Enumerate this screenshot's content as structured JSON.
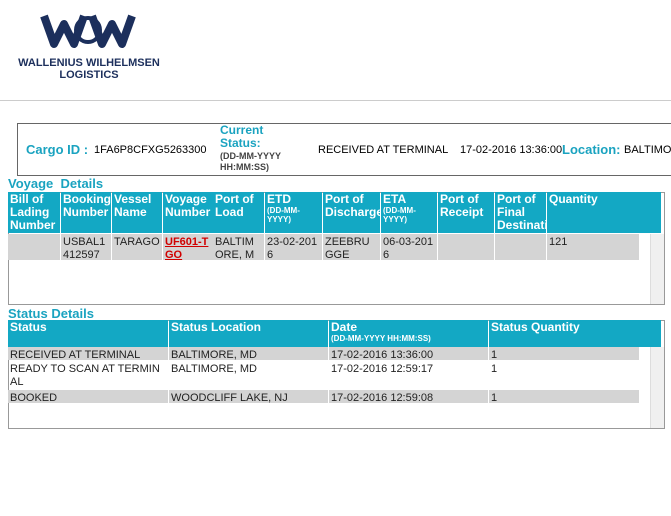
{
  "header": {
    "company": "WALLENIUS WILHELMSEN",
    "division": "LOGISTICS"
  },
  "cargo": {
    "id_label": "Cargo ID :",
    "id": "1FA6P8CFXG5263300",
    "status_label": "Current Status:",
    "status_format": "(DD-MM-YYYY HH:MM:SS)",
    "status": "RECEIVED AT TERMINAL",
    "date": "17-02-2016 13:36:00",
    "location_label": "Location:",
    "location": "BALTIMO"
  },
  "voyage": {
    "title": "Voyage  Details",
    "columns": [
      {
        "label": "Bill of Lading Number"
      },
      {
        "label": "Booking Number"
      },
      {
        "label": "Vessel Name"
      },
      {
        "label": "Voyage Number"
      },
      {
        "label": "Port of Load"
      },
      {
        "label": "ETD",
        "format": "(DD-MM-YYYY)"
      },
      {
        "label": "Port of Discharge"
      },
      {
        "label": "ETA",
        "format": "(DD-MM-YYYY)"
      },
      {
        "label": "Port of Receipt"
      },
      {
        "label": "Port of Final Destination"
      },
      {
        "label": "Quantity"
      }
    ],
    "rows": [
      [
        null,
        "USBAL1412597",
        "TARAGO",
        "UF601-TGO",
        "BALTIMORE, MD",
        "23-02-2016",
        "ZEEBRUGGE",
        "06-03-2016",
        null,
        null,
        "121"
      ]
    ]
  },
  "status": {
    "title": "Status Details",
    "columns": [
      {
        "label": "Status"
      },
      {
        "label": "Status Location"
      },
      {
        "label": "Date",
        "format": "(DD-MM-YYYY HH:MM:SS)"
      },
      {
        "label": "Status Quantity"
      }
    ],
    "rows": [
      [
        "RECEIVED AT TERMINAL",
        "BALTIMORE, MD",
        "17-02-2016 13:36:00",
        "1"
      ],
      [
        "READY TO SCAN AT TERMINAL",
        "BALTIMORE, MD",
        "17-02-2016 12:59:17",
        "1"
      ],
      [
        "BOOKED",
        "WOODCLIFF LAKE, NJ",
        "17-02-2016 12:59:08",
        "1"
      ]
    ]
  }
}
